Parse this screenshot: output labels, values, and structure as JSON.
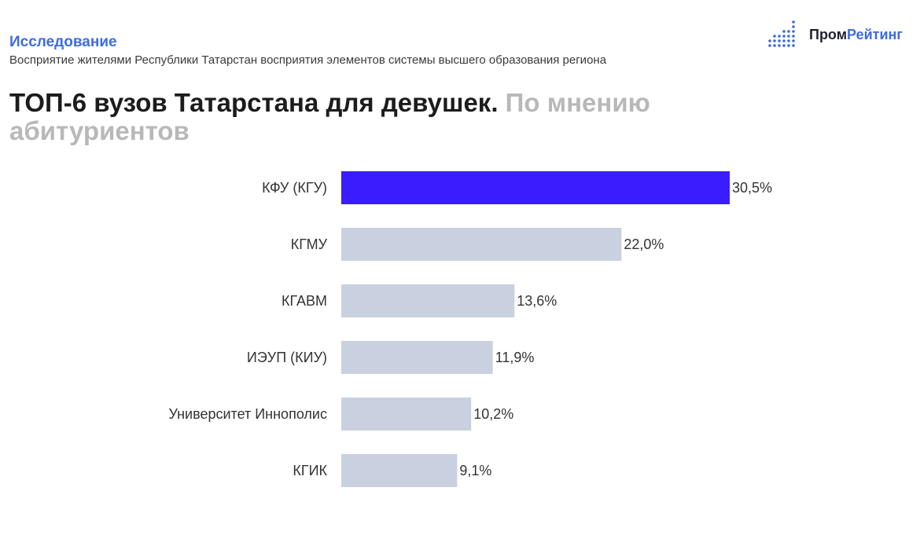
{
  "header": {
    "kicker": "Исследование",
    "subtitle": "Восприятие жителями Республики Татарстан восприятия элементов системы высшего образования региона"
  },
  "logo": {
    "text_prefix": "Пром",
    "text_accent": "Рейтинг"
  },
  "title": {
    "main": "ТОП-6 вузов Татарстана для девушек.",
    "muted": "По мнению абитуриентов"
  },
  "colors": {
    "highlight_bar": "#3a1cff",
    "bar": "#c9d0e0",
    "accent": "#3d6be0"
  },
  "chart_data": {
    "type": "bar",
    "orientation": "horizontal",
    "categories": [
      "КФУ (КГУ)",
      "КГМУ",
      "КГАВМ",
      "ИЭУП (КИУ)",
      "Университет Иннополис",
      "КГИК"
    ],
    "values": [
      30.5,
      22.0,
      13.6,
      11.9,
      10.2,
      9.1
    ],
    "value_labels": [
      "30,5%",
      "22,0%",
      "13,6%",
      "11,9%",
      "10,2%",
      "9,1%"
    ],
    "highlight_index": 0,
    "unit": "%",
    "xlim": [
      0,
      30.5
    ],
    "grid": false,
    "legend": "none"
  }
}
